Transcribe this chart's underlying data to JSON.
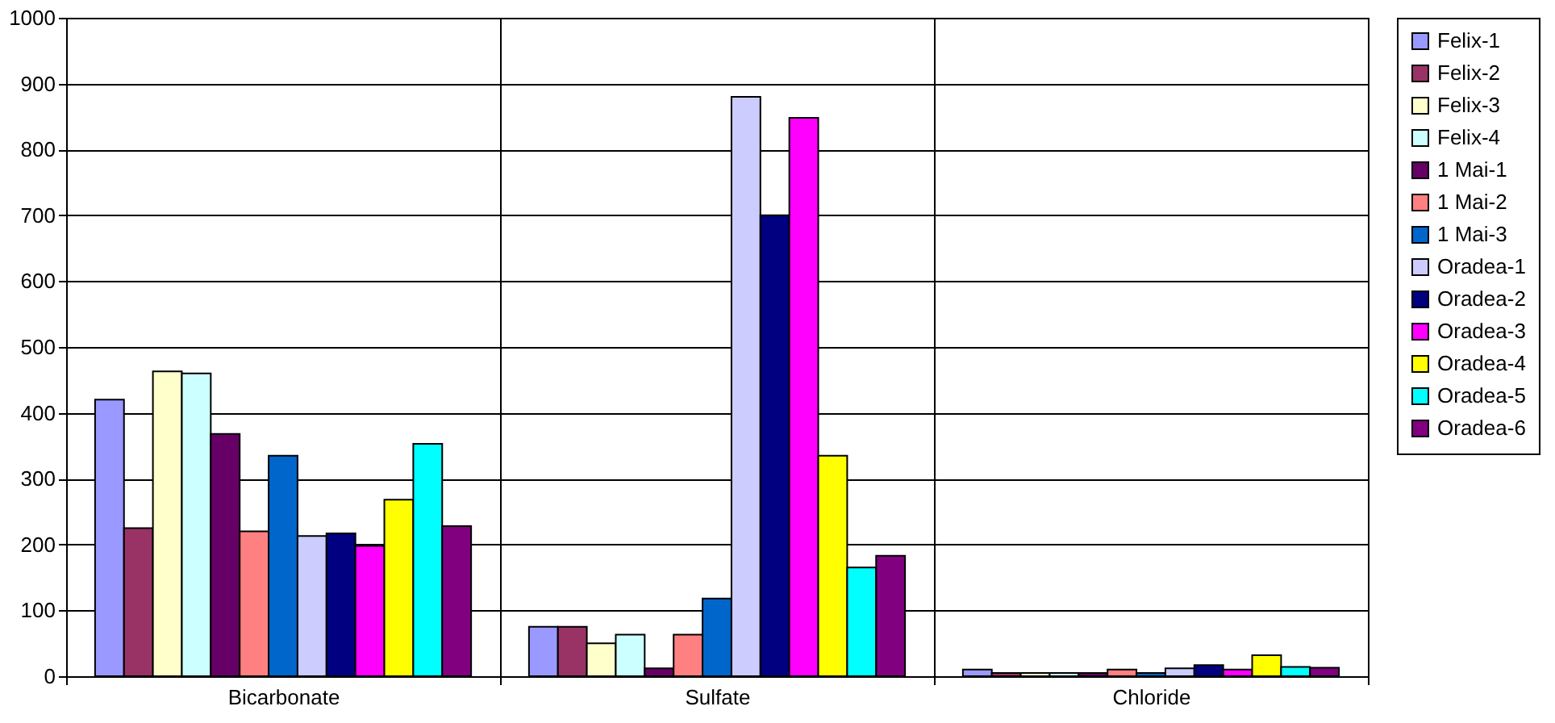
{
  "chart_data": {
    "type": "bar",
    "categories": [
      "Bicarbonate",
      "Sulfate",
      "Chloride"
    ],
    "series": [
      {
        "name": "Felix-1",
        "color": "#9999ff",
        "values": [
          420,
          75,
          10
        ]
      },
      {
        "name": "Felix-2",
        "color": "#993366",
        "values": [
          225,
          75,
          5
        ]
      },
      {
        "name": "Felix-3",
        "color": "#ffffcc",
        "values": [
          463,
          50,
          5
        ]
      },
      {
        "name": "Felix-4",
        "color": "#ccffff",
        "values": [
          460,
          63,
          5
        ]
      },
      {
        "name": "1 Mai-1",
        "color": "#660066",
        "values": [
          368,
          12,
          5
        ]
      },
      {
        "name": "1 Mai-2",
        "color": "#ff8080",
        "values": [
          220,
          63,
          10
        ]
      },
      {
        "name": "1 Mai-3",
        "color": "#0066cc",
        "values": [
          335,
          118,
          5
        ]
      },
      {
        "name": "Oradea-1",
        "color": "#ccccff",
        "values": [
          213,
          880,
          12
        ]
      },
      {
        "name": "Oradea-2",
        "color": "#000080",
        "values": [
          217,
          700,
          17
        ]
      },
      {
        "name": "Oradea-3",
        "color": "#ff00ff",
        "values": [
          198,
          848,
          10
        ]
      },
      {
        "name": "Oradea-4",
        "color": "#ffff00",
        "values": [
          268,
          335,
          32
        ]
      },
      {
        "name": "Oradea-5",
        "color": "#00ffff",
        "values": [
          353,
          165,
          14
        ]
      },
      {
        "name": "Oradea-6",
        "color": "#800080",
        "values": [
          228,
          183,
          13
        ]
      }
    ],
    "ylim": [
      0,
      1000
    ],
    "yticks": [
      0,
      100,
      200,
      300,
      400,
      500,
      600,
      700,
      800,
      900,
      1000
    ],
    "grid": true,
    "legend": "right"
  }
}
